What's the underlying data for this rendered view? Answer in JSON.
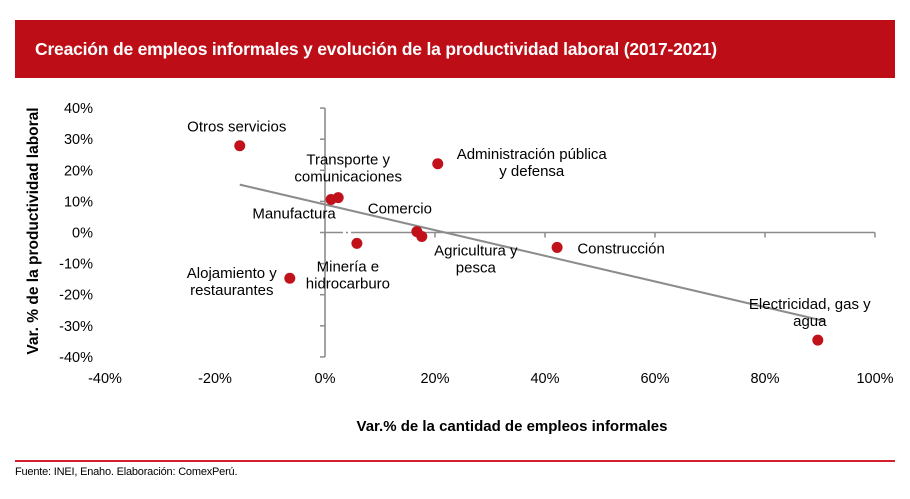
{
  "header": {
    "title": "Creación de empleos informales y evolución de la productividad laboral (2017-2021)"
  },
  "footer": {
    "source": "Fuente: INEI, Enaho. Elaboración: ComexPerú."
  },
  "colors": {
    "brand_red": "#bd0d16",
    "point_red": "#c1121c",
    "axis_gray": "#8c8c8c",
    "trend_gray": "#8c8c8c"
  },
  "chart_data": {
    "type": "scatter",
    "title": "Creación de empleos informales y evolución de la productividad laboral (2017-2021)",
    "xlabel": "Var.% de la cantidad de empleos informales",
    "ylabel": "Var. % de la productividad laboral",
    "xlim": [
      -40,
      100
    ],
    "ylim": [
      -40,
      40
    ],
    "x_ticks": [
      -40,
      -20,
      0,
      20,
      40,
      60,
      80,
      100
    ],
    "y_ticks": [
      40,
      30,
      20,
      10,
      0,
      -10,
      -20,
      -30,
      -40
    ],
    "x_tick_labels": [
      "-40%",
      "-20%",
      "0%",
      "20%",
      "40%",
      "60%",
      "80%",
      "100%"
    ],
    "y_tick_labels": [
      "40%",
      "30%",
      "20%",
      "10%",
      "0%",
      "-10%",
      "-20%",
      "-30%",
      "-40%"
    ],
    "grid": false,
    "points": [
      {
        "label": "Otros servicios",
        "lines": [
          "Otros servicios"
        ],
        "x": -15.5,
        "y": 27.9
      },
      {
        "label": "Transporte y comunicaciones",
        "lines": [
          "Transporte y",
          "comunicaciones"
        ],
        "x": 2.4,
        "y": 11.2
      },
      {
        "label": "Manufactura",
        "lines": [
          "Manufactura"
        ],
        "x": 1.1,
        "y": 10.6
      },
      {
        "label": "Administración pública y defensa",
        "lines": [
          "Administración pública",
          "y defensa"
        ],
        "x": 20.5,
        "y": 22.1
      },
      {
        "label": "Comercio",
        "lines": [
          "Comercio"
        ],
        "x": 16.7,
        "y": 0.3
      },
      {
        "label": "Agricultura y pesca",
        "lines": [
          "Agricultura y",
          "pesca"
        ],
        "x": 17.6,
        "y": -1.3
      },
      {
        "label": "Minería e hidrocarburo",
        "lines": [
          "Minería e",
          "hidrocarburo"
        ],
        "x": 5.8,
        "y": -3.5
      },
      {
        "label": "Construcción",
        "lines": [
          "Construcción"
        ],
        "x": 42.2,
        "y": -4.8
      },
      {
        "label": "Alojamiento y restaurantes",
        "lines": [
          "Alojamiento y",
          "restaurantes"
        ],
        "x": -6.4,
        "y": -14.7
      },
      {
        "label": "Electricidad, gas y agua",
        "lines": [
          "Electricidad, gas y",
          "agua"
        ],
        "x": 89.6,
        "y": -34.6
      }
    ],
    "trendline": {
      "x": [
        -15.5,
        90.9
      ],
      "y": [
        15.4,
        -28.5
      ]
    }
  }
}
